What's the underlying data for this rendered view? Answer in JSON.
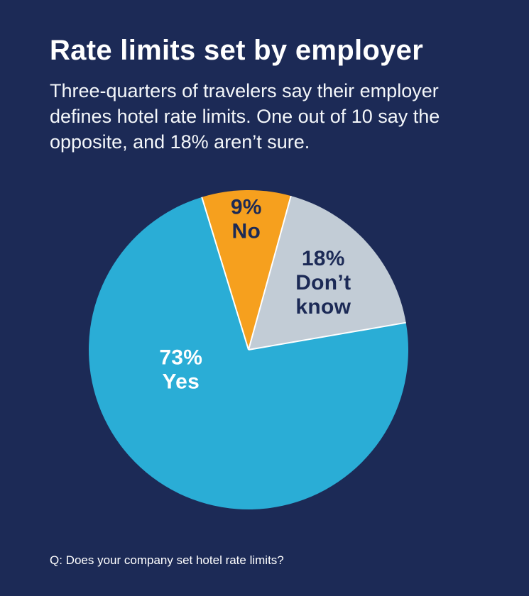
{
  "page": {
    "background": "#1c2a56"
  },
  "header": {
    "title": "Rate limits set by employer",
    "subtitle": "Three-quarters of travelers say their employer defines hotel rate limits. One out of 10 say the opposite, and 18% aren’t sure."
  },
  "footer": {
    "question": "Q: Does your company set hotel rate limits?"
  },
  "chart_data": {
    "type": "pie",
    "title": "Rate limits set by employer",
    "start_angle": -17,
    "legend_position": "labels-inside-slices",
    "separator_color": "#ffffff",
    "slices": [
      {
        "name": "No",
        "value": 9,
        "pct_label": "9%",
        "color": "#f6a01e",
        "label_color": "#1c2a56",
        "label_angle": -1,
        "label_radius": 0.82
      },
      {
        "name": "Don’t know",
        "value": 18,
        "pct_label": "18%",
        "color": "#c2ccd6",
        "label_color": "#1c2a56",
        "label_angle": 48,
        "label_radius": 0.63
      },
      {
        "name": "Yes",
        "value": 73,
        "pct_label": "73%",
        "color": "#2aadd6",
        "label_color": "#ffffff",
        "label_angle": 254,
        "label_radius": 0.44
      }
    ]
  }
}
